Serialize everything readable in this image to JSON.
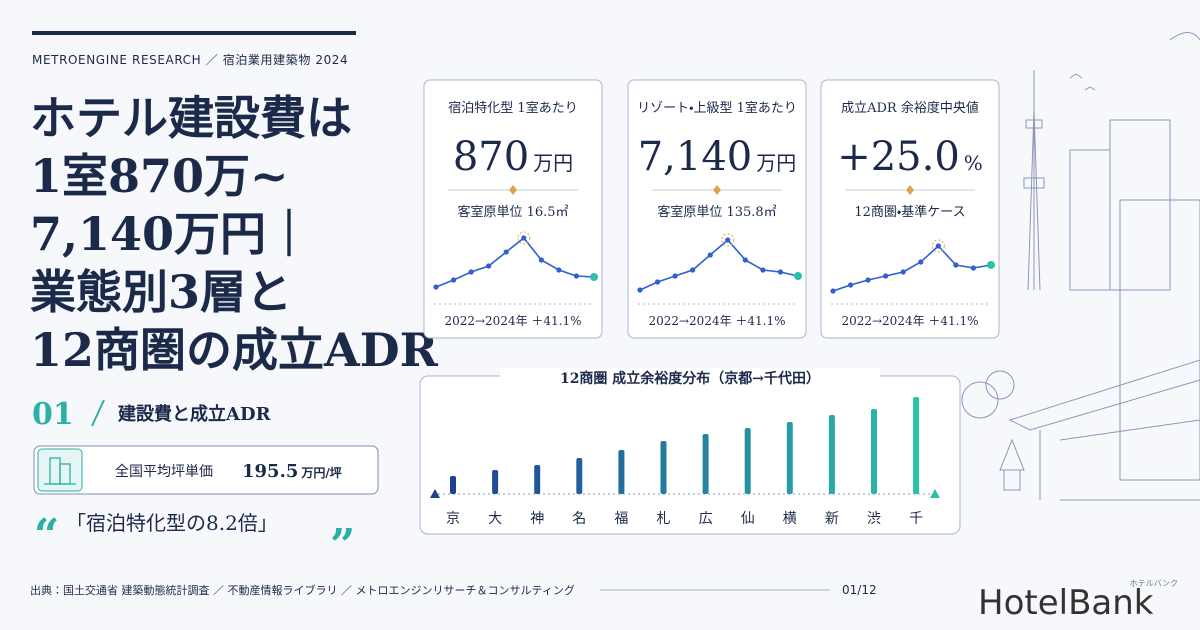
{
  "header": {
    "series_label": "METROENGINE RESEARCH ／ 宿泊業用建築物 2024",
    "title_lines": [
      "ホテル建設費は",
      "1室870万~",
      "7,140万円｜",
      "業態別3層と",
      "12商圏の成立ADR"
    ]
  },
  "section": {
    "number": "01",
    "label": "建設費と成立ADR"
  },
  "stat": {
    "label": "全国平均坪単価",
    "value": "195.5",
    "unit": "万円/坪"
  },
  "quote": {
    "open": "“",
    "text": "「宿泊特化型の8.2倍」",
    "close": "”"
  },
  "cards": [
    {
      "title": "宿泊特化型 1室あたり",
      "value": "870",
      "unit": "万円",
      "sub": "客室原単位 16.5㎡",
      "foot": "2022→2024年 ＋41.1%",
      "spark": [
        13,
        20,
        28,
        34,
        48,
        62,
        40,
        30,
        24,
        23
      ]
    },
    {
      "title": "リゾート・上級型 1室あたり",
      "value": "7,140",
      "unit": "万円",
      "sub": "客室原単位 135.8㎡",
      "foot": "2022→2024年 ＋41.1%",
      "spark": [
        10,
        18,
        24,
        30,
        45,
        60,
        40,
        30,
        28,
        24
      ]
    },
    {
      "title": "成立ADR 余裕度中央値",
      "value": "+25.0",
      "unit": "%",
      "sub": "12商圏・基準ケース",
      "foot": "2022→2024年 ＋41.1%",
      "spark": [
        9,
        15,
        20,
        24,
        28,
        38,
        54,
        35,
        32,
        35
      ]
    }
  ],
  "distribution": {
    "title": "12商圏 成立余裕度分布（京都→千代田）",
    "categories": [
      "京",
      "大",
      "神",
      "名",
      "福",
      "札",
      "広",
      "仙",
      "横",
      "新",
      "渋",
      "千"
    ],
    "values": [
      18,
      24,
      29,
      36,
      44,
      53,
      60,
      66,
      72,
      79,
      85,
      97
    ]
  },
  "footer": {
    "source": "出典：国土交通省 建築動態統計調査 ／ 不動産情報ライブラリ ／ メトロエンジンリサーチ＆コンサルティング",
    "page": "01/12"
  },
  "logo": {
    "name": "HotelBank",
    "kana": "ホテルバンク"
  }
}
